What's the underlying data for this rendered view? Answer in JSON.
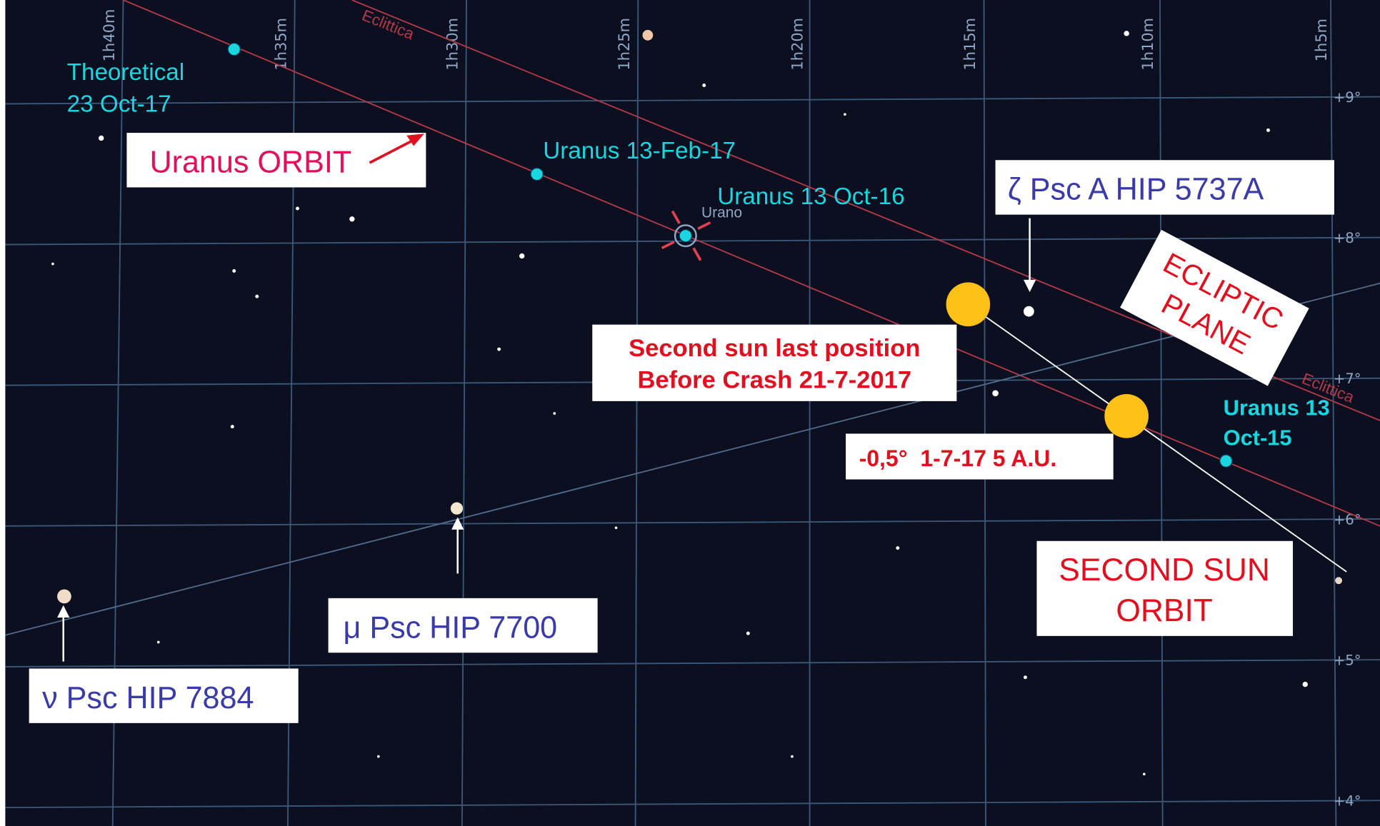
{
  "grid_labels": {
    "ra": [
      "1h40m",
      "1h35m",
      "1h30m",
      "1h25m",
      "1h20m",
      "1h15m",
      "1h10m",
      "1h5m"
    ],
    "dec": [
      "+9°",
      "+8°",
      "+7°",
      "+6°",
      "+5°",
      "+4°"
    ]
  },
  "map_labels": {
    "ecliptic": "Eclittica",
    "planet": "Urano"
  },
  "annotations": {
    "theoretical": [
      "Theoretical",
      "23 Oct-17"
    ],
    "uranus_orbit": "Uranus ORBIT",
    "uranus_feb17": "Uranus 13-Feb-17",
    "uranus_oct16": "Uranus 13 Oct-16",
    "zeta_psc": "ζ Psc A HIP 5737A",
    "ecliptic_plane": [
      "ECLIPTIC",
      "PLANE"
    ],
    "second_sun_last": [
      "Second sun last position",
      "Before Crash 21-7-2017"
    ],
    "uranus_oct15": [
      "Uranus 13",
      "Oct-15"
    ],
    "position_0717": "-0,5°  1-7-17 5 A.U.",
    "second_sun_orbit": [
      "SECOND SUN",
      "ORBIT"
    ],
    "mu_psc": "μ Psc HIP 7700",
    "nu_psc": "ν Psc HIP 7884"
  }
}
